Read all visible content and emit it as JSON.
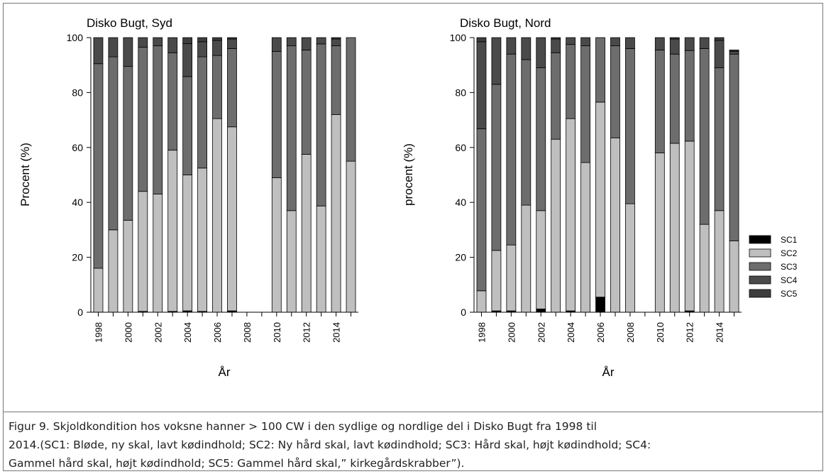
{
  "legend_items": [
    {
      "name": "SC1",
      "color": "#000000"
    },
    {
      "name": "SC2",
      "color": "#bfbfbf"
    },
    {
      "name": "SC3",
      "color": "#6d6d6d"
    },
    {
      "name": "SC4",
      "color": "#4a4a4a"
    },
    {
      "name": "SC5",
      "color": "#3d3d3d"
    }
  ],
  "caption": {
    "line1": "Figur 9. Skjoldkondition hos voksne hanner > 100 CW i den sydlige og nordlige del i Disko Bugt fra 1998 til",
    "line2": "2014.(SC1: Bløde, ny skal, lavt kødindhold; SC2: Ny hård skal, lavt kødindhold; SC3: Hård skal, højt kødindhold; SC4:",
    "line3": "Gammel hård skal, højt kødindhold; SC5: Gammel hård skal,” kirkegårdskrabber”)."
  },
  "chart_data": [
    {
      "type": "bar",
      "stacked": true,
      "title": "Disko Bugt, Syd",
      "xlabel": "År",
      "ylabel": "Procent (%)",
      "ylim": [
        0,
        100
      ],
      "yticks": [
        0,
        20,
        40,
        60,
        80,
        100
      ],
      "xticks": [
        "1998",
        "2000",
        "2002",
        "2004",
        "2006",
        "2008",
        "2010",
        "2012",
        "2014"
      ],
      "categories": [
        1998,
        1999,
        2000,
        2001,
        2002,
        2003,
        2004,
        2005,
        2006,
        2007,
        2008,
        2009,
        2010,
        2011,
        2012,
        2013,
        2014,
        2015
      ],
      "series": [
        {
          "name": "SC1",
          "values": [
            0,
            0,
            0,
            0.3,
            0,
            0.3,
            0.5,
            0.3,
            0,
            0.5,
            null,
            null,
            0,
            0,
            0,
            0,
            0,
            0
          ]
        },
        {
          "name": "SC2",
          "values": [
            16,
            30,
            33.5,
            43.7,
            43,
            58.7,
            49.5,
            52.2,
            70.5,
            67,
            null,
            null,
            49,
            37,
            57.5,
            38.7,
            72,
            55
          ]
        },
        {
          "name": "SC3",
          "values": [
            74.5,
            63,
            56,
            52.5,
            54,
            35.5,
            35.8,
            40.5,
            23,
            28.5,
            null,
            null,
            46,
            60,
            38,
            59,
            25,
            45
          ]
        },
        {
          "name": "SC4",
          "values": [
            9.5,
            7,
            10.5,
            3.5,
            3,
            5.5,
            12,
            5.5,
            5.5,
            3.5,
            null,
            null,
            5,
            3,
            4.5,
            2.3,
            2.5,
            0
          ]
        },
        {
          "name": "SC5",
          "values": [
            0,
            0,
            0,
            0,
            0,
            0,
            2.2,
            1.5,
            1,
            0.5,
            null,
            null,
            0,
            0,
            0,
            0,
            0.5,
            0
          ]
        }
      ]
    },
    {
      "type": "bar",
      "stacked": true,
      "title": "Disko Bugt, Nord",
      "xlabel": "År",
      "ylabel": "procent (%)",
      "ylim": [
        0,
        100
      ],
      "yticks": [
        0,
        20,
        40,
        60,
        80,
        100
      ],
      "xticks": [
        "1998",
        "2000",
        "2002",
        "2004",
        "2006",
        "2008",
        "2010",
        "2012",
        "2014"
      ],
      "categories": [
        1998,
        1999,
        2000,
        2001,
        2002,
        2003,
        2004,
        2005,
        2006,
        2007,
        2008,
        2009,
        2010,
        2011,
        2012,
        2013,
        2014,
        2015
      ],
      "legend": {
        "position": "right"
      },
      "series": [
        {
          "name": "SC1",
          "values": [
            0,
            0.5,
            0.5,
            0,
            1.2,
            0,
            0.5,
            0,
            5.5,
            0,
            0,
            null,
            0,
            0,
            0.5,
            0,
            0,
            0
          ]
        },
        {
          "name": "SC2",
          "values": [
            7.8,
            22,
            24,
            39,
            35.8,
            63,
            70,
            54.5,
            71,
            63.5,
            39.5,
            null,
            58,
            61.5,
            61.8,
            32,
            37,
            26
          ]
        },
        {
          "name": "SC3",
          "values": [
            59,
            60.5,
            69.5,
            53,
            52,
            31.5,
            27,
            42.5,
            23.5,
            33.5,
            56.5,
            null,
            37.5,
            32.5,
            33,
            64,
            52,
            68
          ]
        },
        {
          "name": "SC4",
          "values": [
            31.7,
            17,
            6,
            8,
            11,
            5,
            2.5,
            3,
            0,
            3,
            4,
            null,
            4.5,
            5.5,
            5,
            4,
            10,
            1
          ]
        },
        {
          "name": "SC5",
          "values": [
            1.5,
            0,
            0,
            0,
            0,
            0.5,
            0,
            0,
            0,
            0,
            0,
            null,
            0,
            0.5,
            0,
            0,
            1,
            0.5
          ]
        }
      ]
    }
  ]
}
